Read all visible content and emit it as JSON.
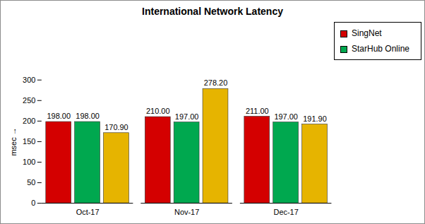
{
  "chart_data": {
    "type": "bar",
    "title": "International Network Latency",
    "y_label": "msec",
    "categories": [
      "Oct-17",
      "Nov-17",
      "Dec-17"
    ],
    "series": [
      {
        "name": "SingNet",
        "color": "#d40000",
        "values": [
          198,
          210,
          211
        ],
        "value_labels": [
          "198.00",
          "210.00",
          "211.00"
        ]
      },
      {
        "name": "StarHub Online",
        "color": "#00a84f",
        "values": [
          198,
          197,
          197
        ],
        "value_labels": [
          "198.00",
          "197.00",
          "197.00"
        ]
      },
      {
        "name": null,
        "color": "#e6b400",
        "values": [
          170.9,
          278.2,
          191.9
        ],
        "value_labels": [
          "170.90",
          "278.20",
          "191.90"
        ]
      }
    ],
    "ylim": [
      0,
      300
    ],
    "yticks": [
      0,
      50,
      100,
      150,
      200,
      250,
      300
    ],
    "grid": false,
    "legend": "top-right",
    "data_labels": true
  }
}
